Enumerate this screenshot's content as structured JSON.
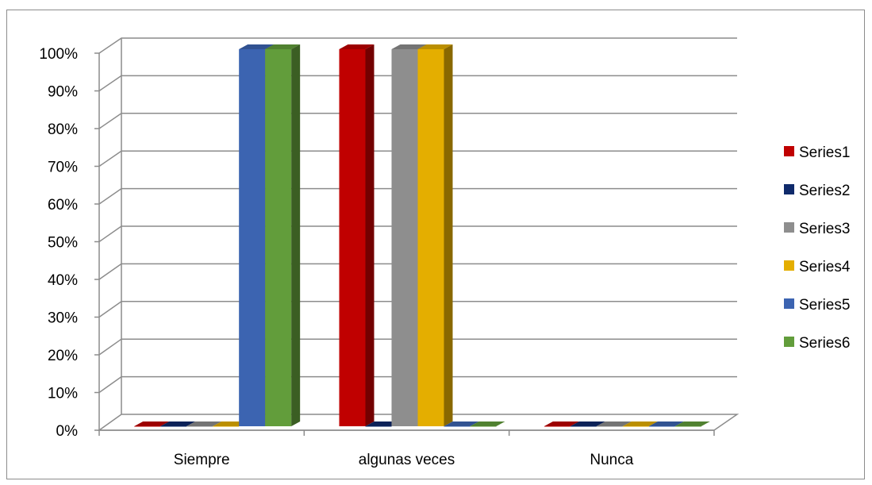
{
  "chart_data": {
    "type": "bar",
    "style": "3d-clustered-column",
    "categories": [
      "Siempre",
      "algunas veces",
      "Nunca"
    ],
    "y_axis": {
      "ticks": [
        "0%",
        "10%",
        "20%",
        "30%",
        "40%",
        "50%",
        "60%",
        "70%",
        "80%",
        "90%",
        "100%"
      ],
      "range": [
        0,
        100
      ],
      "unit": "%"
    },
    "grid": true,
    "legend": {
      "position": "right"
    },
    "series": [
      {
        "name": "Series1",
        "color": "#C00000",
        "values": [
          0,
          100,
          0
        ]
      },
      {
        "name": "Series2",
        "color": "#0F2A6B",
        "values": [
          0,
          0,
          0
        ]
      },
      {
        "name": "Series3",
        "color": "#8E8E8E",
        "values": [
          0,
          100,
          0
        ]
      },
      {
        "name": "Series4",
        "color": "#E4AE00",
        "values": [
          0,
          100,
          0
        ]
      },
      {
        "name": "Series5",
        "color": "#3C64B1",
        "values": [
          100,
          0,
          0
        ]
      },
      {
        "name": "Series6",
        "color": "#629D3B",
        "values": [
          100,
          0,
          0
        ]
      }
    ]
  }
}
